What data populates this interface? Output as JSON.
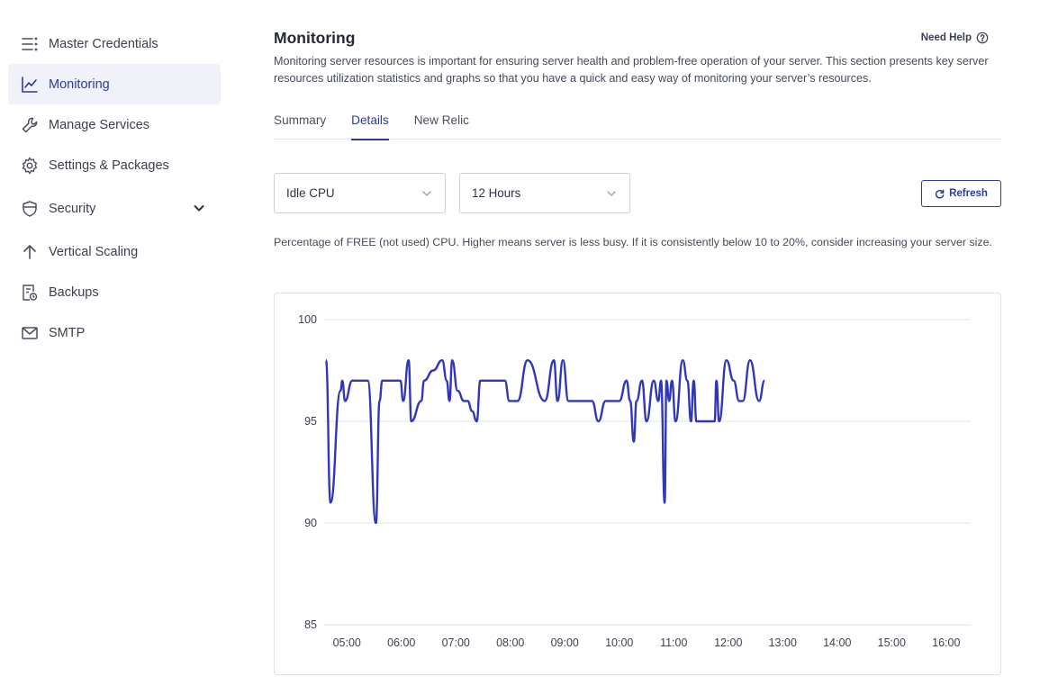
{
  "sidebar": {
    "items": [
      {
        "label": "Master Credentials",
        "icon": "list-icon",
        "active": false
      },
      {
        "label": "Monitoring",
        "icon": "line-chart-icon",
        "active": true
      },
      {
        "label": "Manage Services",
        "icon": "wrench-icon",
        "active": false
      },
      {
        "label": "Settings & Packages",
        "icon": "gear-icon",
        "active": false
      },
      {
        "label": "Security",
        "icon": "shield-icon",
        "active": false,
        "expandable": true
      },
      {
        "label": "Vertical Scaling",
        "icon": "arrow-up-icon",
        "active": false
      },
      {
        "label": "Backups",
        "icon": "backup-icon",
        "active": false
      },
      {
        "label": "SMTP",
        "icon": "mail-icon",
        "active": false
      }
    ]
  },
  "header": {
    "title": "Monitoring",
    "help_label": "Need Help",
    "description": "Monitoring server resources is important for ensuring server health and problem-free operation of your server. This section presents key server resources utilization statistics and graphs so that you have a quick and easy way of monitoring your server’s resources."
  },
  "tabs": [
    {
      "label": "Summary",
      "active": false
    },
    {
      "label": "Details",
      "active": true
    },
    {
      "label": "New Relic",
      "active": false
    }
  ],
  "controls": {
    "metric_select": "Idle CPU",
    "range_select": "12 Hours",
    "refresh_label": "Refresh"
  },
  "hint": "Percentage of FREE (not used) CPU. Higher means server is less busy. If it is consistently below 10 to 20%, consider increasing your server size.",
  "colors": {
    "accent": "#2d3a9e",
    "line": "#3037b8",
    "grid": "#e2e3e8",
    "active_bg": "#f1f1f9"
  },
  "chart_data": {
    "type": "line",
    "title": "",
    "xlabel": "",
    "ylabel": "",
    "ylim": [
      85,
      100
    ],
    "xlim": [
      "04:35",
      "16:27"
    ],
    "yticks": [
      85,
      90,
      95,
      100
    ],
    "xticks": [
      "05:00",
      "06:00",
      "07:00",
      "08:00",
      "09:00",
      "10:00",
      "11:00",
      "12:00",
      "13:00",
      "14:00",
      "15:00",
      "16:00"
    ],
    "grid": "horizontal",
    "series": [
      {
        "name": "",
        "points": [
          [
            "04:37",
            98
          ],
          [
            "04:42",
            91
          ],
          [
            "04:53",
            96.5
          ],
          [
            "04:55",
            97
          ],
          [
            "04:58",
            96
          ],
          [
            "05:06",
            97
          ],
          [
            "05:23",
            97
          ],
          [
            "05:32",
            90
          ],
          [
            "05:36",
            96
          ],
          [
            "05:39",
            97
          ],
          [
            "05:59",
            97
          ],
          [
            "06:02",
            96
          ],
          [
            "06:08",
            98
          ],
          [
            "06:11",
            95
          ],
          [
            "06:22",
            96
          ],
          [
            "06:25",
            97
          ],
          [
            "06:35",
            97.5
          ],
          [
            "06:45",
            98
          ],
          [
            "06:50",
            97
          ],
          [
            "06:53",
            96
          ],
          [
            "06:56",
            98
          ],
          [
            "07:02",
            96.5
          ],
          [
            "07:09",
            96
          ],
          [
            "07:13",
            96
          ],
          [
            "07:18",
            95.5
          ],
          [
            "07:23",
            95
          ],
          [
            "07:27",
            97
          ],
          [
            "07:54",
            97
          ],
          [
            "07:59",
            96
          ],
          [
            "08:08",
            96
          ],
          [
            "08:19",
            98
          ],
          [
            "08:38",
            96
          ],
          [
            "08:48",
            98
          ],
          [
            "08:52",
            96
          ],
          [
            "08:58",
            98
          ],
          [
            "09:04",
            96
          ],
          [
            "09:30",
            96
          ],
          [
            "09:37",
            95
          ],
          [
            "09:45",
            96
          ],
          [
            "10:00",
            96
          ],
          [
            "10:08",
            97
          ],
          [
            "10:12",
            96
          ],
          [
            "10:16",
            94
          ],
          [
            "10:19",
            96
          ],
          [
            "10:25",
            97
          ],
          [
            "10:30",
            95
          ],
          [
            "10:38",
            97
          ],
          [
            "10:43",
            96
          ],
          [
            "10:46",
            97
          ],
          [
            "10:50",
            91
          ],
          [
            "10:52",
            97
          ],
          [
            "10:55",
            96
          ],
          [
            "10:58",
            97
          ],
          [
            "11:02",
            95
          ],
          [
            "11:10",
            98
          ],
          [
            "11:15",
            97
          ],
          [
            "11:19",
            95
          ],
          [
            "11:22",
            97
          ],
          [
            "11:25",
            95
          ],
          [
            "11:45",
            95
          ],
          [
            "11:47",
            97
          ],
          [
            "11:50",
            95
          ],
          [
            "11:58",
            98
          ],
          [
            "12:06",
            97
          ],
          [
            "12:12",
            96
          ],
          [
            "12:16",
            96
          ],
          [
            "12:24",
            98
          ],
          [
            "12:34",
            96
          ],
          [
            "12:40",
            97
          ]
        ]
      }
    ]
  }
}
